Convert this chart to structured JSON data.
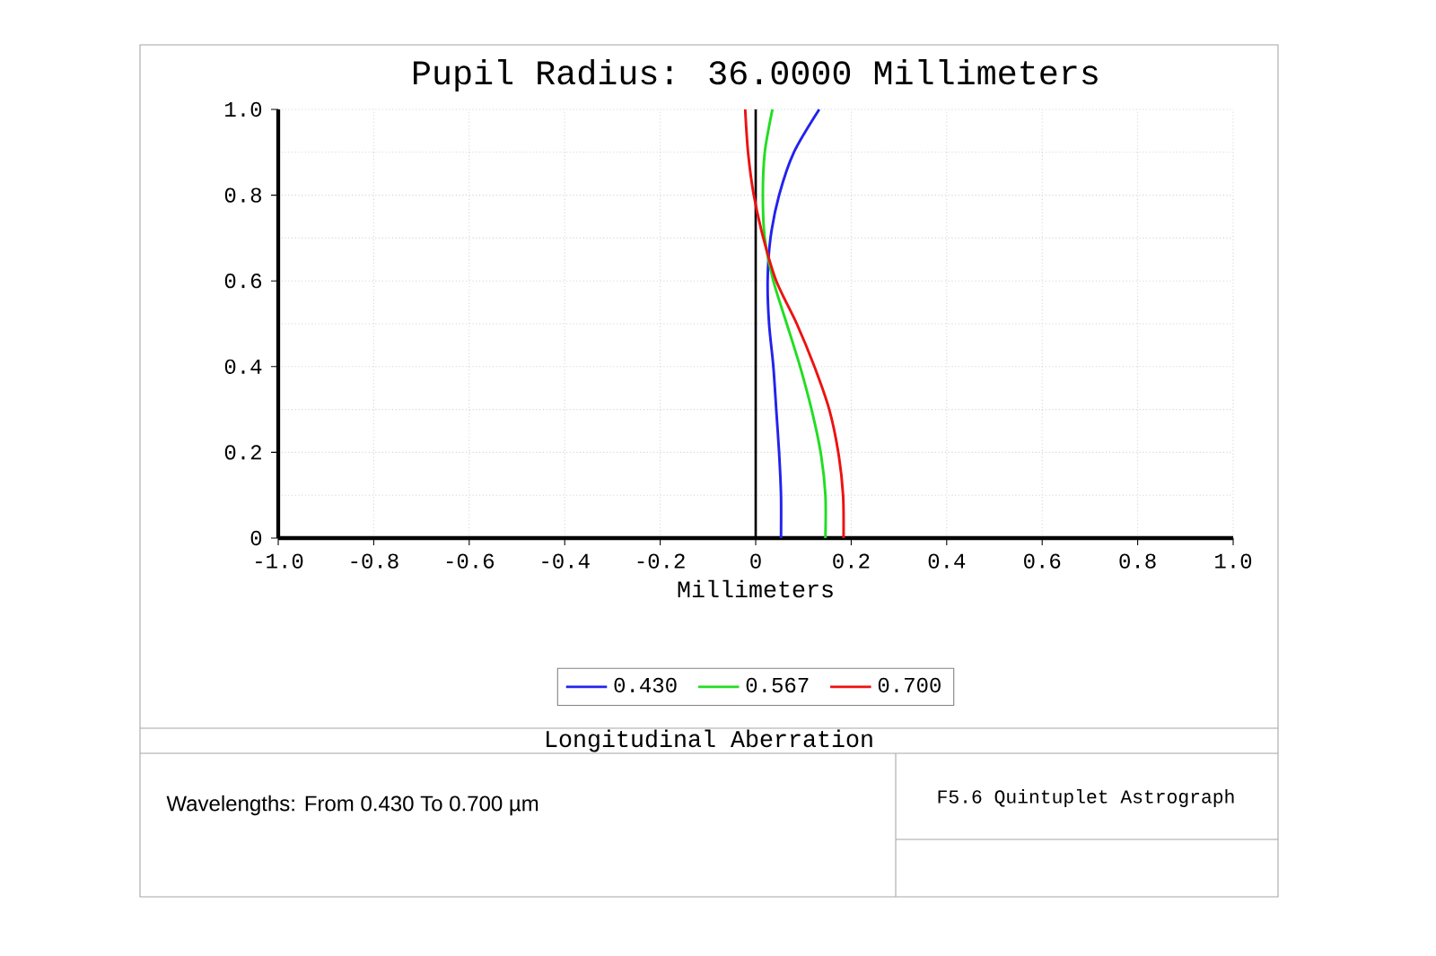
{
  "chart_data": {
    "type": "line",
    "title": "Pupil Radius: 36.0000 Millimeters",
    "xlabel": "Millimeters",
    "xlim": [
      -1,
      1
    ],
    "ylim": [
      0,
      1
    ],
    "xticks": [
      {
        "value": -1,
        "label": "-1.0"
      },
      -0.8,
      -0.6,
      -0.4,
      -0.2,
      0,
      0.2,
      0.4,
      0.6,
      0.8,
      {
        "value": 1,
        "label": "1.0"
      }
    ],
    "yticks": [
      0,
      0.2,
      0.4,
      0.6,
      0.8,
      {
        "value": 1,
        "label": "1.0"
      }
    ],
    "grid": true,
    "legend": "bottom",
    "marker": "none",
    "line_style": "solid",
    "ref_lines": [
      {
        "axis": "x",
        "value": 0,
        "color": "#000000"
      }
    ],
    "series": [
      {
        "name": "0.430",
        "color": "#2222ee",
        "x": [
          0.053,
          0.053,
          0.049,
          0.043,
          0.037,
          0.028,
          0.025,
          0.031,
          0.049,
          0.08,
          0.133
        ],
        "values": [
          0,
          0.1,
          0.2,
          0.3,
          0.4,
          0.5,
          0.6,
          0.7,
          0.8,
          0.9,
          1
        ]
      },
      {
        "name": "0.567",
        "color": "#22dd22",
        "x": [
          0.146,
          0.146,
          0.136,
          0.117,
          0.093,
          0.065,
          0.037,
          0.019,
          0.015,
          0.019,
          0.035
        ],
        "values": [
          0,
          0.1,
          0.2,
          0.3,
          0.4,
          0.5,
          0.6,
          0.7,
          0.8,
          0.9,
          1
        ]
      },
      {
        "name": "0.700",
        "color": "#ee1111",
        "x": [
          0.184,
          0.183,
          0.173,
          0.154,
          0.123,
          0.086,
          0.043,
          0.016,
          -0.004,
          -0.016,
          -0.022
        ],
        "values": [
          0,
          0.1,
          0.2,
          0.3,
          0.4,
          0.5,
          0.6,
          0.7,
          0.8,
          0.9,
          1
        ]
      }
    ],
    "annotations": [
      "Longitudinal Aberration",
      "Wavelengths: From 0.430 To 0.700 µm",
      "F5.6 Quintuplet Astrograph"
    ]
  }
}
